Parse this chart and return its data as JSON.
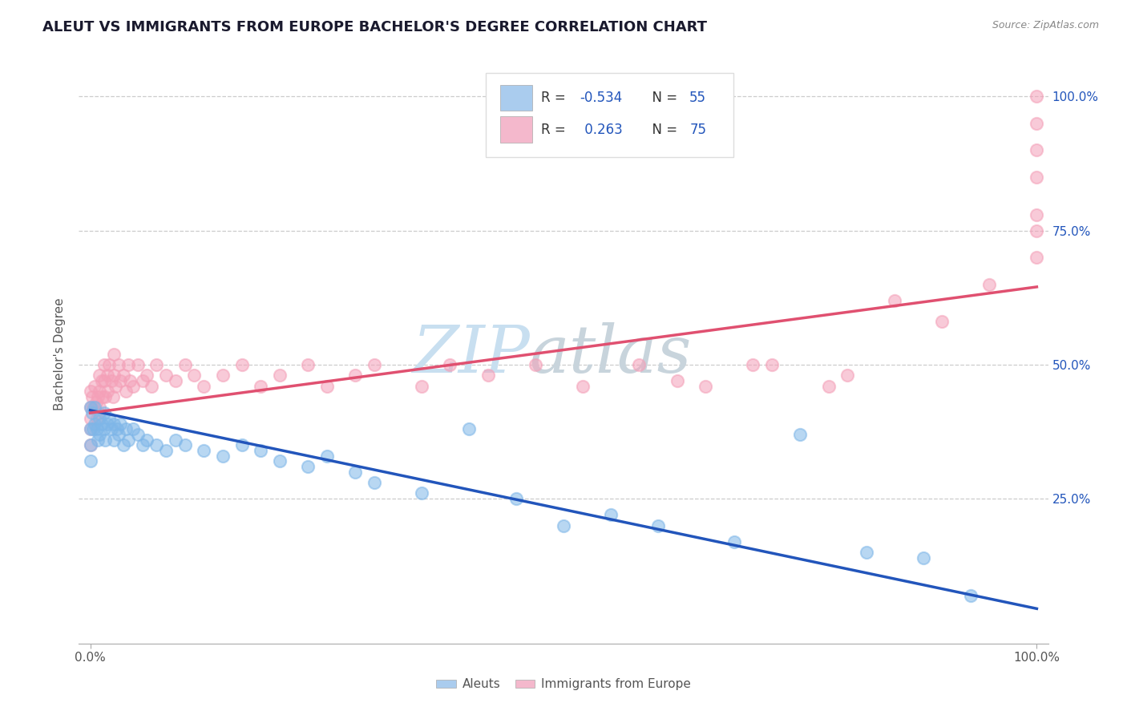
{
  "title": "ALEUT VS IMMIGRANTS FROM EUROPE BACHELOR'S DEGREE CORRELATION CHART",
  "source": "Source: ZipAtlas.com",
  "ylabel": "Bachelor's Degree",
  "ytick_vals": [
    0.25,
    0.5,
    0.75,
    1.0
  ],
  "ytick_labels": [
    "25.0%",
    "50.0%",
    "75.0%",
    "100.0%"
  ],
  "xtick_vals": [
    0.0,
    1.0
  ],
  "xtick_labels": [
    "0.0%",
    "100.0%"
  ],
  "legend_bottom": [
    "Aleuts",
    "Immigrants from Europe"
  ],
  "aleut_color": "#7EB6E8",
  "europe_color": "#F4A0B8",
  "aleut_line_color": "#2255BB",
  "europe_line_color": "#E05070",
  "r_color": "#2255BB",
  "n_color": "#000000",
  "legend_patch_aleut": "#AACCEE",
  "legend_patch_europe": "#F4B8CC",
  "grid_color": "#cccccc",
  "xlim": [
    0.0,
    1.0
  ],
  "ylim": [
    0.0,
    1.0
  ],
  "aleut_line_x": [
    0.0,
    1.0
  ],
  "aleut_line_y": [
    0.415,
    0.045
  ],
  "europe_line_x": [
    0.0,
    1.0
  ],
  "europe_line_y": [
    0.41,
    0.645
  ],
  "aleut_x": [
    0.0,
    0.0,
    0.0,
    0.0,
    0.002,
    0.003,
    0.005,
    0.005,
    0.007,
    0.008,
    0.01,
    0.01,
    0.012,
    0.015,
    0.015,
    0.016,
    0.018,
    0.02,
    0.022,
    0.025,
    0.025,
    0.028,
    0.03,
    0.032,
    0.035,
    0.038,
    0.04,
    0.045,
    0.05,
    0.055,
    0.06,
    0.07,
    0.08,
    0.09,
    0.1,
    0.12,
    0.14,
    0.16,
    0.18,
    0.2,
    0.23,
    0.25,
    0.28,
    0.3,
    0.35,
    0.4,
    0.45,
    0.5,
    0.55,
    0.6,
    0.68,
    0.75,
    0.82,
    0.88,
    0.93
  ],
  "aleut_y": [
    0.42,
    0.38,
    0.35,
    0.32,
    0.41,
    0.38,
    0.42,
    0.39,
    0.38,
    0.36,
    0.4,
    0.37,
    0.39,
    0.41,
    0.38,
    0.36,
    0.39,
    0.4,
    0.38,
    0.39,
    0.36,
    0.38,
    0.37,
    0.39,
    0.35,
    0.38,
    0.36,
    0.38,
    0.37,
    0.35,
    0.36,
    0.35,
    0.34,
    0.36,
    0.35,
    0.34,
    0.33,
    0.35,
    0.34,
    0.32,
    0.31,
    0.33,
    0.3,
    0.28,
    0.26,
    0.38,
    0.25,
    0.2,
    0.22,
    0.2,
    0.17,
    0.37,
    0.15,
    0.14,
    0.07
  ],
  "europe_x": [
    0.0,
    0.0,
    0.0,
    0.0,
    0.0,
    0.002,
    0.003,
    0.005,
    0.006,
    0.007,
    0.008,
    0.009,
    0.01,
    0.01,
    0.01,
    0.012,
    0.013,
    0.015,
    0.015,
    0.016,
    0.018,
    0.018,
    0.02,
    0.022,
    0.024,
    0.025,
    0.025,
    0.027,
    0.03,
    0.032,
    0.035,
    0.038,
    0.04,
    0.042,
    0.045,
    0.05,
    0.055,
    0.06,
    0.065,
    0.07,
    0.08,
    0.09,
    0.1,
    0.11,
    0.12,
    0.14,
    0.16,
    0.18,
    0.2,
    0.23,
    0.25,
    0.28,
    0.3,
    0.35,
    0.38,
    0.42,
    0.47,
    0.52,
    0.58,
    0.65,
    0.72,
    0.8,
    0.85,
    0.9,
    0.95,
    1.0,
    1.0,
    1.0,
    1.0,
    1.0,
    1.0,
    1.0,
    0.62,
    0.7,
    0.78
  ],
  "europe_y": [
    0.45,
    0.42,
    0.4,
    0.38,
    0.35,
    0.44,
    0.42,
    0.46,
    0.43,
    0.4,
    0.44,
    0.41,
    0.48,
    0.45,
    0.42,
    0.47,
    0.44,
    0.5,
    0.47,
    0.44,
    0.48,
    0.45,
    0.5,
    0.47,
    0.44,
    0.52,
    0.48,
    0.46,
    0.5,
    0.47,
    0.48,
    0.45,
    0.5,
    0.47,
    0.46,
    0.5,
    0.47,
    0.48,
    0.46,
    0.5,
    0.48,
    0.47,
    0.5,
    0.48,
    0.46,
    0.48,
    0.5,
    0.46,
    0.48,
    0.5,
    0.46,
    0.48,
    0.5,
    0.46,
    0.5,
    0.48,
    0.5,
    0.46,
    0.5,
    0.46,
    0.5,
    0.48,
    0.62,
    0.58,
    0.65,
    0.7,
    0.78,
    0.85,
    0.9,
    0.95,
    1.0,
    0.75,
    0.47,
    0.5,
    0.46
  ]
}
